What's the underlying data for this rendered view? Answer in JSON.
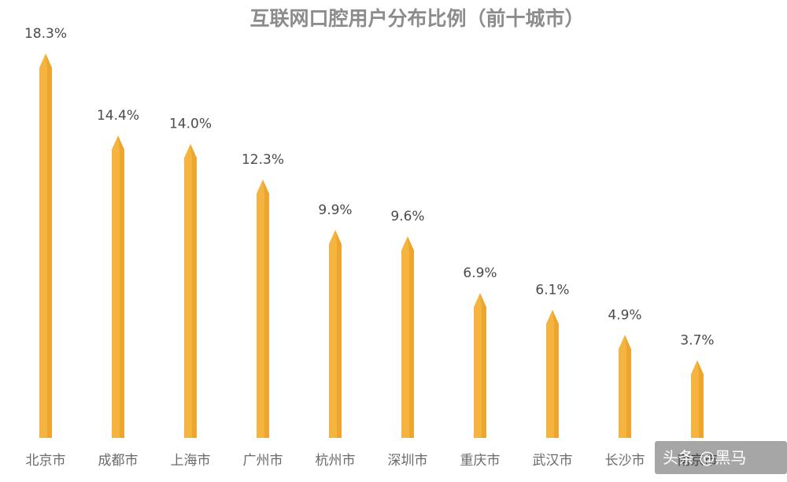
{
  "chart_data": {
    "type": "bar",
    "title": "互联网口腔用户分布比例（前十城市）",
    "categories": [
      "北京市",
      "成都市",
      "上海市",
      "广州市",
      "杭州市",
      "深圳市",
      "重庆市",
      "武汉市",
      "长沙市",
      "南京市"
    ],
    "values": [
      18.3,
      14.4,
      14.0,
      12.3,
      9.9,
      9.6,
      6.9,
      6.1,
      4.9,
      3.7
    ],
    "value_labels": [
      "18.3%",
      "14.4%",
      "14.0%",
      "12.3%",
      "9.9%",
      "9.6%",
      "6.9%",
      "6.1%",
      "4.9%",
      "3.7%"
    ],
    "xlabel": "",
    "ylabel": "",
    "ylim": [
      0,
      20
    ],
    "grid": false,
    "legend": "none",
    "colors": {
      "bar": "#f5b440",
      "bar_shade": "#e39a1f",
      "title": "#8c8c8c",
      "label": "#4a4a4a"
    }
  },
  "watermark": {
    "text": "头条 @黑马"
  }
}
